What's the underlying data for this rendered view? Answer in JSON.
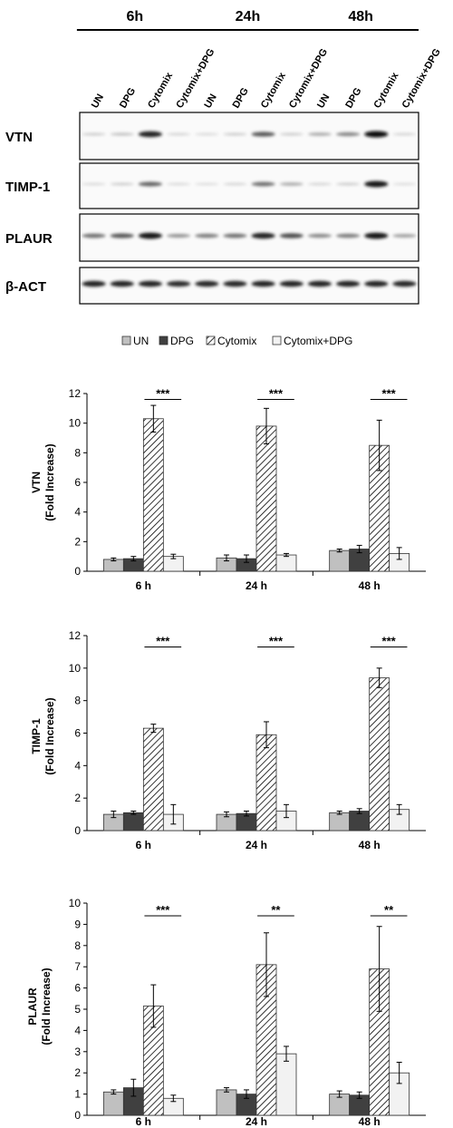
{
  "blot": {
    "timepoints": [
      {
        "label": "6h",
        "lane_start": 1,
        "lane_end": 4
      },
      {
        "label": "24h",
        "lane_start": 5,
        "lane_end": 8
      },
      {
        "label": "48h",
        "lane_start": 9,
        "lane_end": 12
      }
    ],
    "lanes": [
      "UN",
      "DPG",
      "Cytomix",
      "Cytomix+DPG",
      "UN",
      "DPG",
      "Cytomix",
      "Cytomix+DPG",
      "UN",
      "DPG",
      "Cytomix",
      "Cytomix+DPG"
    ],
    "rows": [
      {
        "label": "VTN",
        "bands": [
          0.15,
          0.2,
          0.9,
          0.12,
          0.1,
          0.15,
          0.65,
          0.15,
          0.3,
          0.45,
          1.0,
          0.12
        ]
      },
      {
        "label": "TIMP-1",
        "bands": [
          0.1,
          0.15,
          0.6,
          0.1,
          0.08,
          0.12,
          0.55,
          0.3,
          0.12,
          0.15,
          0.95,
          0.08
        ]
      },
      {
        "label": "PLAUR",
        "bands": [
          0.55,
          0.65,
          0.95,
          0.4,
          0.5,
          0.55,
          0.9,
          0.7,
          0.45,
          0.5,
          0.95,
          0.35
        ]
      },
      {
        "label": "β-ACT",
        "bands": [
          0.9,
          0.9,
          0.9,
          0.85,
          0.88,
          0.88,
          0.9,
          0.9,
          0.9,
          0.9,
          0.9,
          0.88
        ]
      }
    ]
  },
  "legend": {
    "entries": [
      {
        "label": "UN",
        "color": "#c0c0c0",
        "pattern": "solid"
      },
      {
        "label": "DPG",
        "color": "#404040",
        "pattern": "solid"
      },
      {
        "label": "Cytomix",
        "color": "#ffffff",
        "pattern": "hatch"
      },
      {
        "label": "Cytomix+DPG",
        "color": "#f2f2f2",
        "pattern": "solid"
      }
    ]
  },
  "chart_data": [
    {
      "type": "bar",
      "ylabel": [
        "VTN",
        "(Fold Increase)"
      ],
      "categories": [
        "6 h",
        "24 h",
        "48 h"
      ],
      "ylim": [
        0,
        12
      ],
      "yticks": [
        0,
        2,
        4,
        6,
        8,
        10,
        12
      ],
      "series": [
        {
          "name": "UN",
          "values": [
            0.8,
            0.9,
            1.4
          ],
          "errors": [
            0.1,
            0.2,
            0.1
          ]
        },
        {
          "name": "DPG",
          "values": [
            0.85,
            0.85,
            1.5
          ],
          "errors": [
            0.15,
            0.25,
            0.25
          ]
        },
        {
          "name": "Cytomix",
          "values": [
            10.3,
            9.8,
            8.5
          ],
          "errors": [
            0.9,
            1.2,
            1.7
          ]
        },
        {
          "name": "Cytomix+DPG",
          "values": [
            1.0,
            1.1,
            1.2
          ],
          "errors": [
            0.15,
            0.1,
            0.4
          ]
        }
      ],
      "significance": [
        {
          "category_index": 0,
          "text": "***",
          "y": 11.6
        },
        {
          "category_index": 1,
          "text": "***",
          "y": 11.6
        },
        {
          "category_index": 2,
          "text": "***",
          "y": 11.6
        }
      ]
    },
    {
      "type": "bar",
      "ylabel": [
        "TIMP-1",
        "(Fold Increase)"
      ],
      "categories": [
        "6 h",
        "24 h",
        "48 h"
      ],
      "ylim": [
        0,
        12
      ],
      "yticks": [
        0,
        2,
        4,
        6,
        8,
        10,
        12
      ],
      "series": [
        {
          "name": "UN",
          "values": [
            1.0,
            1.0,
            1.1
          ],
          "errors": [
            0.2,
            0.15,
            0.1
          ]
        },
        {
          "name": "DPG",
          "values": [
            1.1,
            1.05,
            1.2
          ],
          "errors": [
            0.1,
            0.15,
            0.15
          ]
        },
        {
          "name": "Cytomix",
          "values": [
            6.3,
            5.9,
            9.4
          ],
          "errors": [
            0.25,
            0.8,
            0.6
          ]
        },
        {
          "name": "Cytomix+DPG",
          "values": [
            1.0,
            1.2,
            1.3
          ],
          "errors": [
            0.6,
            0.4,
            0.3
          ]
        }
      ],
      "significance": [
        {
          "category_index": 0,
          "text": "***",
          "y": 11.3
        },
        {
          "category_index": 1,
          "text": "***",
          "y": 11.3
        },
        {
          "category_index": 2,
          "text": "***",
          "y": 11.3
        }
      ]
    },
    {
      "type": "bar",
      "ylabel": [
        "PLAUR",
        "(Fold Increase)"
      ],
      "categories": [
        "6 h",
        "24 h",
        "48 h"
      ],
      "ylim": [
        0,
        10
      ],
      "yticks": [
        0,
        1,
        2,
        3,
        4,
        5,
        6,
        7,
        8,
        9,
        10
      ],
      "series": [
        {
          "name": "UN",
          "values": [
            1.1,
            1.2,
            1.0
          ],
          "errors": [
            0.1,
            0.1,
            0.15
          ]
        },
        {
          "name": "DPG",
          "values": [
            1.3,
            1.0,
            0.95
          ],
          "errors": [
            0.4,
            0.2,
            0.15
          ]
        },
        {
          "name": "Cytomix",
          "values": [
            5.15,
            7.1,
            6.9
          ],
          "errors": [
            1.0,
            1.5,
            2.0
          ]
        },
        {
          "name": "Cytomix+DPG",
          "values": [
            0.8,
            2.9,
            2.0
          ],
          "errors": [
            0.15,
            0.35,
            0.5
          ]
        }
      ],
      "significance": [
        {
          "category_index": 0,
          "text": "***",
          "y": 9.4
        },
        {
          "category_index": 1,
          "text": "**",
          "y": 9.4
        },
        {
          "category_index": 2,
          "text": "**",
          "y": 9.4
        }
      ]
    }
  ]
}
